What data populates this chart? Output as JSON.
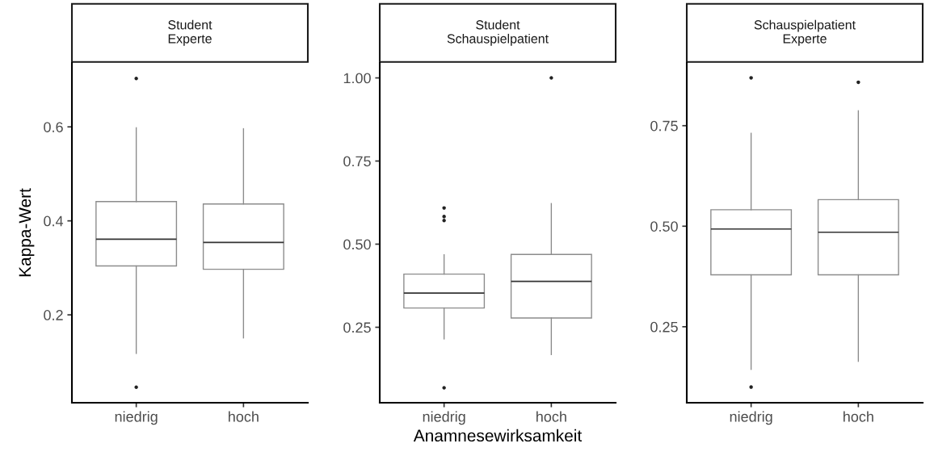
{
  "chart_data": [
    {
      "type": "box",
      "title": "Student\nExperte",
      "ylabel": "Kappa-Wert",
      "categories": [
        "niedrig",
        "hoch"
      ],
      "ylim": [
        0.013,
        0.736
      ],
      "yticks": [
        {
          "value": 0.2,
          "label": "0.2"
        },
        {
          "value": 0.4,
          "label": "0.4"
        },
        {
          "value": 0.6,
          "label": "0.6"
        }
      ],
      "grid": false,
      "color": "#8c8c8c",
      "boxes": [
        {
          "low": 0.118,
          "q1": 0.304,
          "median": 0.361,
          "q3": 0.441,
          "high": 0.598,
          "outliers": [
            0.703,
            0.046
          ]
        },
        {
          "low": 0.151,
          "q1": 0.297,
          "median": 0.354,
          "q3": 0.436,
          "high": 0.596
        }
      ]
    },
    {
      "type": "box",
      "title": "Student\nSchauspielpatient",
      "xlabel": "Anamnesewirksamkeit",
      "categories": [
        "niedrig",
        "hoch"
      ],
      "ylim": [
        0.023,
        1.045
      ],
      "yticks": [
        {
          "value": 0.25,
          "label": "0.25"
        },
        {
          "value": 0.5,
          "label": "0.50"
        },
        {
          "value": 0.75,
          "label": "0.75"
        },
        {
          "value": 1.0,
          "label": "1.00"
        }
      ],
      "grid": false,
      "color": "#8c8c8c",
      "boxes": [
        {
          "low": 0.215,
          "q1": 0.308,
          "median": 0.353,
          "q3": 0.41,
          "high": 0.468,
          "outliers": [
            0.609,
            0.583,
            0.571,
            0.068
          ]
        },
        {
          "low": 0.168,
          "q1": 0.278,
          "median": 0.388,
          "q3": 0.469,
          "high": 0.622,
          "outliers": [
            1.0
          ]
        }
      ]
    },
    {
      "type": "box",
      "title": "Schauspielpatient\nExperte",
      "categories": [
        "niedrig",
        "hoch"
      ],
      "ylim": [
        0.061,
        0.906
      ],
      "yticks": [
        {
          "value": 0.25,
          "label": "0.25"
        },
        {
          "value": 0.5,
          "label": "0.50"
        },
        {
          "value": 0.75,
          "label": "0.75"
        }
      ],
      "grid": false,
      "color": "#8c8c8c",
      "boxes": [
        {
          "low": 0.144,
          "q1": 0.379,
          "median": 0.493,
          "q3": 0.541,
          "high": 0.731,
          "outliers": [
            0.869,
            0.1
          ]
        },
        {
          "low": 0.164,
          "q1": 0.379,
          "median": 0.485,
          "q3": 0.566,
          "high": 0.787,
          "outliers": [
            0.858
          ]
        }
      ]
    }
  ]
}
